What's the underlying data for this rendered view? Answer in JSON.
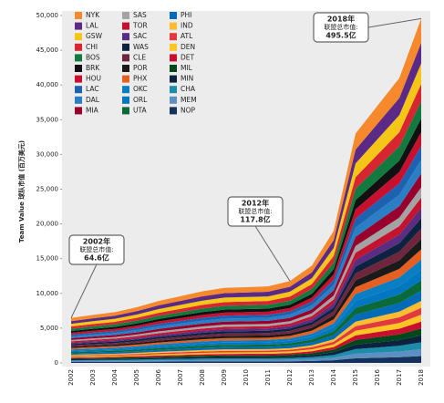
{
  "chart_data": {
    "type": "stacked_area",
    "ylabel": "Team Value 球队市值 (百万美元)",
    "x": [
      "2002",
      "2003",
      "2004",
      "2005",
      "2006",
      "2007",
      "2008",
      "2009",
      "2010",
      "2011",
      "2012",
      "2013",
      "2014",
      "2015",
      "2016",
      "2017",
      "2018"
    ],
    "ylim": [
      0,
      50000
    ],
    "yticks": [
      0,
      {
        "value": 5000,
        "label": "5,000"
      },
      {
        "value": 10000,
        "label": "10,000"
      },
      {
        "value": 15000,
        "label": "15,000"
      },
      {
        "value": 20000,
        "label": "20,000"
      },
      {
        "value": 25000,
        "label": "25,000"
      },
      {
        "value": 30000,
        "label": "30,000"
      },
      {
        "value": 35000,
        "label": "35,000"
      },
      {
        "value": 40000,
        "label": "40,000"
      },
      {
        "value": 45000,
        "label": "45,000"
      },
      {
        "value": 50000,
        "label": "50,000"
      }
    ],
    "annotations": [
      {
        "title": "2002年",
        "label": "联盟总市值:",
        "value": "64.6亿"
      },
      {
        "title": "2012年",
        "label": "联盟总市值:",
        "value": "117.8亿"
      },
      {
        "title": "2018年",
        "label": "联盟总市值:",
        "value": "495.5亿"
      }
    ],
    "series": [
      {
        "name": "NYK",
        "color": "#f5892b",
        "values": [
          452.2,
          483,
          511,
          560,
          623,
          672,
          721,
          756,
          763,
          770,
          824.6,
          980,
          1330,
          2310,
          2590,
          2870,
          3468.5
        ]
      },
      {
        "name": "LAL",
        "color": "#5b2a86",
        "values": [
          387.6,
          414,
          438,
          480,
          534,
          576,
          618,
          648,
          654,
          660,
          706.8,
          840,
          1140,
          1980,
          2220,
          2460,
          2973
        ]
      },
      {
        "name": "GSW",
        "color": "#f5c518",
        "values": [
          387.6,
          414,
          438,
          480,
          534,
          576,
          618,
          648,
          654,
          660,
          706.8,
          840,
          1140,
          1980,
          2220,
          2460,
          2973
        ]
      },
      {
        "name": "CHI",
        "color": "#d7262f",
        "values": [
          323,
          345,
          365,
          400,
          445,
          480,
          515,
          540,
          545,
          550,
          589,
          700,
          950,
          1650,
          1850,
          2050,
          2477.5
        ]
      },
      {
        "name": "BOS",
        "color": "#137a3f",
        "values": [
          323,
          345,
          365,
          400,
          445,
          480,
          515,
          540,
          545,
          550,
          589,
          700,
          950,
          1650,
          1850,
          2050,
          2477.5
        ]
      },
      {
        "name": "BRK",
        "color": "#111111",
        "values": [
          258.4,
          276,
          292,
          320,
          356,
          384,
          412,
          432,
          436,
          440,
          471.2,
          560,
          760,
          1320,
          1480,
          1640,
          1982
        ]
      },
      {
        "name": "HOU",
        "color": "#c8102e",
        "values": [
          258.4,
          276,
          292,
          320,
          356,
          384,
          412,
          432,
          436,
          440,
          471.2,
          560,
          760,
          1320,
          1480,
          1640,
          1982
        ]
      },
      {
        "name": "LAC",
        "color": "#1d62b0",
        "values": [
          258.4,
          276,
          292,
          320,
          356,
          384,
          412,
          432,
          436,
          440,
          471.2,
          560,
          760,
          1320,
          1480,
          1640,
          1982
        ]
      },
      {
        "name": "DAL",
        "color": "#2a7ec4",
        "values": [
          258.4,
          276,
          292,
          320,
          356,
          384,
          412,
          432,
          436,
          440,
          471.2,
          560,
          760,
          1320,
          1480,
          1640,
          1982
        ]
      },
      {
        "name": "MIA",
        "color": "#98002e",
        "values": [
          258.4,
          276,
          292,
          320,
          356,
          384,
          412,
          432,
          436,
          440,
          471.2,
          560,
          760,
          1320,
          1480,
          1640,
          1982
        ]
      },
      {
        "name": "SAS",
        "color": "#a3a3a3",
        "values": [
          193.8,
          207,
          219,
          240,
          267,
          288,
          309,
          324,
          327,
          330,
          353.4,
          420,
          570,
          990,
          1110,
          1230,
          1486.5
        ]
      },
      {
        "name": "TOR",
        "color": "#c4122f",
        "values": [
          193.8,
          207,
          219,
          240,
          267,
          288,
          309,
          324,
          327,
          330,
          353.4,
          420,
          570,
          990,
          1110,
          1230,
          1486.5
        ]
      },
      {
        "name": "SAC",
        "color": "#5a2d81",
        "values": [
          193.8,
          207,
          219,
          240,
          267,
          288,
          309,
          324,
          327,
          330,
          353.4,
          420,
          570,
          990,
          1110,
          1230,
          1486.5
        ]
      },
      {
        "name": "WAS",
        "color": "#0d2240",
        "values": [
          193.8,
          207,
          219,
          240,
          267,
          288,
          309,
          324,
          327,
          330,
          353.4,
          420,
          570,
          990,
          1110,
          1230,
          1486.5
        ]
      },
      {
        "name": "CLE",
        "color": "#6f263d",
        "values": [
          193.8,
          207,
          219,
          240,
          267,
          288,
          309,
          324,
          327,
          330,
          353.4,
          420,
          570,
          990,
          1110,
          1230,
          1486.5
        ]
      },
      {
        "name": "POR",
        "color": "#1a1a1a",
        "values": [
          193.8,
          207,
          219,
          240,
          267,
          288,
          309,
          324,
          327,
          330,
          353.4,
          420,
          570,
          990,
          1110,
          1230,
          1486.5
        ]
      },
      {
        "name": "PHX",
        "color": "#e56020",
        "values": [
          193.8,
          207,
          219,
          240,
          267,
          288,
          309,
          324,
          327,
          330,
          353.4,
          420,
          570,
          990,
          1110,
          1230,
          1486.5
        ]
      },
      {
        "name": "OKC",
        "color": "#0b7dc2",
        "values": [
          193.8,
          207,
          219,
          240,
          267,
          288,
          309,
          324,
          327,
          330,
          353.4,
          420,
          570,
          990,
          1110,
          1230,
          1486.5
        ]
      },
      {
        "name": "ORL",
        "color": "#0077c0",
        "values": [
          193.8,
          207,
          219,
          240,
          267,
          288,
          309,
          324,
          327,
          330,
          353.4,
          420,
          570,
          990,
          1110,
          1230,
          1486.5
        ]
      },
      {
        "name": "UTA",
        "color": "#0b6a3a",
        "values": [
          193.8,
          207,
          219,
          240,
          267,
          288,
          309,
          324,
          327,
          330,
          353.4,
          420,
          570,
          990,
          1110,
          1230,
          1486.5
        ]
      },
      {
        "name": "PHI",
        "color": "#006bb6",
        "values": [
          193.8,
          207,
          219,
          240,
          267,
          288,
          309,
          324,
          327,
          330,
          353.4,
          420,
          570,
          990,
          1110,
          1230,
          1486.5
        ]
      },
      {
        "name": "IND",
        "color": "#fdbb30",
        "values": [
          129.2,
          138,
          146,
          160,
          178,
          192,
          206,
          216,
          218,
          220,
          235.6,
          280,
          380,
          660,
          740,
          820,
          991
        ]
      },
      {
        "name": "ATL",
        "color": "#e03a3e",
        "values": [
          129.2,
          138,
          146,
          160,
          178,
          192,
          206,
          216,
          218,
          220,
          235.6,
          280,
          380,
          660,
          740,
          820,
          991
        ]
      },
      {
        "name": "DEN",
        "color": "#fec524",
        "values": [
          129.2,
          138,
          146,
          160,
          178,
          192,
          206,
          216,
          218,
          220,
          235.6,
          280,
          380,
          660,
          740,
          820,
          991
        ]
      },
      {
        "name": "DET",
        "color": "#c8102e",
        "values": [
          129.2,
          138,
          146,
          160,
          178,
          192,
          206,
          216,
          218,
          220,
          235.6,
          280,
          380,
          660,
          740,
          820,
          991
        ]
      },
      {
        "name": "MIL",
        "color": "#00471b",
        "values": [
          129.2,
          138,
          146,
          160,
          178,
          192,
          206,
          216,
          218,
          220,
          235.6,
          280,
          380,
          660,
          740,
          820,
          991
        ]
      },
      {
        "name": "MIN",
        "color": "#0c2340",
        "values": [
          129.2,
          138,
          146,
          160,
          178,
          192,
          206,
          216,
          218,
          220,
          235.6,
          280,
          380,
          660,
          740,
          820,
          991
        ]
      },
      {
        "name": "CHA",
        "color": "#1d8cab",
        "values": [
          129.2,
          138,
          146,
          160,
          178,
          192,
          206,
          216,
          218,
          220,
          235.6,
          280,
          380,
          660,
          740,
          820,
          991
        ]
      },
      {
        "name": "MEM",
        "color": "#5d8fc0",
        "values": [
          129.2,
          138,
          146,
          160,
          178,
          192,
          206,
          216,
          218,
          220,
          235.6,
          280,
          380,
          660,
          740,
          820,
          991
        ]
      },
      {
        "name": "NOP",
        "color": "#14305c",
        "values": [
          129.2,
          138,
          146,
          160,
          178,
          192,
          206,
          216,
          218,
          220,
          235.6,
          280,
          380,
          660,
          740,
          820,
          991
        ]
      }
    ]
  }
}
